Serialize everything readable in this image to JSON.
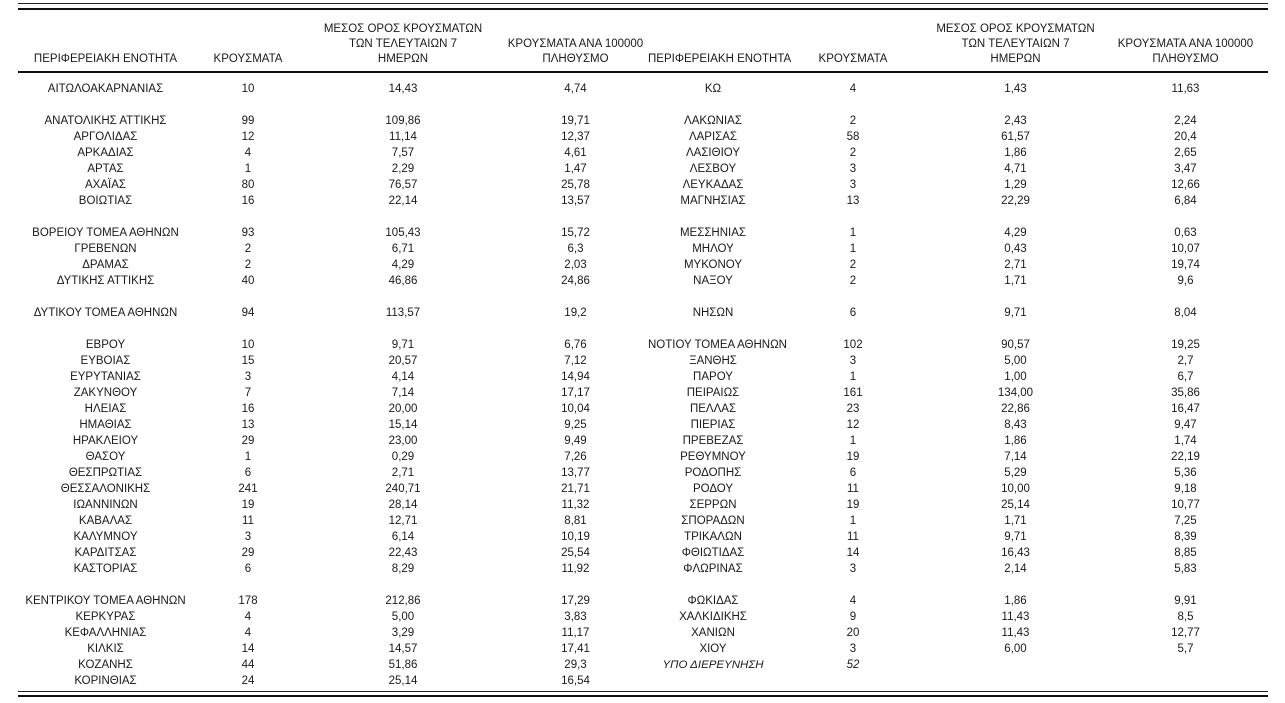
{
  "page": {
    "background": "#ffffff",
    "text_color": "#1a1a1a",
    "rule_color": "#111111"
  },
  "headers": {
    "region": "ΠΕΡΙΦΕΡΕΙΑΚΗ ΕΝΟΤΗΤΑ",
    "cases": "ΚΡΟΥΣΜΑΤΑ",
    "avg_lines": [
      "ΜΕΣΟΣ ΟΡΟΣ ΚΡΟΥΣΜΑΤΩΝ",
      "ΤΩΝ ΤΕΛΕΥΤΑΙΩΝ 7",
      "ΗΜΕΡΩΝ"
    ],
    "per_lines": [
      "ΚΡΟΥΣΜΑΤΑ ΑΝΑ 100000",
      "ΠΛΗΘΥΣΜΟ"
    ]
  },
  "tables": [
    {
      "side": "left",
      "rows": [
        {
          "region": "ΑΙΤΩΛΟΑΚΑΡΝΑΝΙΑΣ",
          "cases": "10",
          "avg7": "14,43",
          "per100k": "4,74"
        },
        null,
        {
          "region": "ΑΝΑΤΟΛΙΚΗΣ ΑΤΤΙΚΗΣ",
          "cases": "99",
          "avg7": "109,86",
          "per100k": "19,71"
        },
        {
          "region": "ΑΡΓΟΛΙΔΑΣ",
          "cases": "12",
          "avg7": "11,14",
          "per100k": "12,37"
        },
        {
          "region": "ΑΡΚΑΔΙΑΣ",
          "cases": "4",
          "avg7": "7,57",
          "per100k": "4,61"
        },
        {
          "region": "ΑΡΤΑΣ",
          "cases": "1",
          "avg7": "2,29",
          "per100k": "1,47"
        },
        {
          "region": "ΑΧΑΪΑΣ",
          "cases": "80",
          "avg7": "76,57",
          "per100k": "25,78"
        },
        {
          "region": "ΒΟΙΩΤΙΑΣ",
          "cases": "16",
          "avg7": "22,14",
          "per100k": "13,57"
        },
        null,
        {
          "region": "ΒΟΡΕΙΟΥ ΤΟΜΕΑ ΑΘΗΝΩΝ",
          "cases": "93",
          "avg7": "105,43",
          "per100k": "15,72"
        },
        {
          "region": "ΓΡΕΒΕΝΩΝ",
          "cases": "2",
          "avg7": "6,71",
          "per100k": "6,3"
        },
        {
          "region": "ΔΡΑΜΑΣ",
          "cases": "2",
          "avg7": "4,29",
          "per100k": "2,03"
        },
        {
          "region": "ΔΥΤΙΚΗΣ ΑΤΤΙΚΗΣ",
          "cases": "40",
          "avg7": "46,86",
          "per100k": "24,86"
        },
        null,
        {
          "region": "ΔΥΤΙΚΟΥ ΤΟΜΕΑ ΑΘΗΝΩΝ",
          "cases": "94",
          "avg7": "113,57",
          "per100k": "19,2"
        },
        null,
        {
          "region": "ΕΒΡΟΥ",
          "cases": "10",
          "avg7": "9,71",
          "per100k": "6,76"
        },
        {
          "region": "ΕΥΒΟΙΑΣ",
          "cases": "15",
          "avg7": "20,57",
          "per100k": "7,12"
        },
        {
          "region": "ΕΥΡΥΤΑΝΙΑΣ",
          "cases": "3",
          "avg7": "4,14",
          "per100k": "14,94"
        },
        {
          "region": "ΖΑΚΥΝΘΟΥ",
          "cases": "7",
          "avg7": "7,14",
          "per100k": "17,17"
        },
        {
          "region": "ΗΛΕΙΑΣ",
          "cases": "16",
          "avg7": "20,00",
          "per100k": "10,04"
        },
        {
          "region": "ΗΜΑΘΙΑΣ",
          "cases": "13",
          "avg7": "15,14",
          "per100k": "9,25"
        },
        {
          "region": "ΗΡΑΚΛΕΙΟΥ",
          "cases": "29",
          "avg7": "23,00",
          "per100k": "9,49"
        },
        {
          "region": "ΘΑΣΟΥ",
          "cases": "1",
          "avg7": "0,29",
          "per100k": "7,26"
        },
        {
          "region": "ΘΕΣΠΡΩΤΙΑΣ",
          "cases": "6",
          "avg7": "2,71",
          "per100k": "13,77"
        },
        {
          "region": "ΘΕΣΣΑΛΟΝΙΚΗΣ",
          "cases": "241",
          "avg7": "240,71",
          "per100k": "21,71"
        },
        {
          "region": "ΙΩΑΝΝΙΝΩΝ",
          "cases": "19",
          "avg7": "28,14",
          "per100k": "11,32"
        },
        {
          "region": "ΚΑΒΑΛΑΣ",
          "cases": "11",
          "avg7": "12,71",
          "per100k": "8,81"
        },
        {
          "region": "ΚΑΛΥΜΝΟΥ",
          "cases": "3",
          "avg7": "6,14",
          "per100k": "10,19"
        },
        {
          "region": "ΚΑΡΔΙΤΣΑΣ",
          "cases": "29",
          "avg7": "22,43",
          "per100k": "25,54"
        },
        {
          "region": "ΚΑΣΤΟΡΙΑΣ",
          "cases": "6",
          "avg7": "8,29",
          "per100k": "11,92"
        },
        null,
        {
          "region": "ΚΕΝΤΡΙΚΟΥ ΤΟΜΕΑ ΑΘΗΝΩΝ",
          "cases": "178",
          "avg7": "212,86",
          "per100k": "17,29"
        },
        {
          "region": "ΚΕΡΚΥΡΑΣ",
          "cases": "4",
          "avg7": "5,00",
          "per100k": "3,83"
        },
        {
          "region": "ΚΕΦΑΛΛΗΝΙΑΣ",
          "cases": "4",
          "avg7": "3,29",
          "per100k": "11,17"
        },
        {
          "region": "ΚΙΛΚΙΣ",
          "cases": "14",
          "avg7": "14,57",
          "per100k": "17,41"
        },
        {
          "region": "ΚΟΖΑΝΗΣ",
          "cases": "44",
          "avg7": "51,86",
          "per100k": "29,3"
        },
        {
          "region": "ΚΟΡΙΝΘΙΑΣ",
          "cases": "24",
          "avg7": "25,14",
          "per100k": "16,54"
        }
      ]
    },
    {
      "side": "right",
      "rows": [
        {
          "region": "ΚΩ",
          "cases": "4",
          "avg7": "1,43",
          "per100k": "11,63"
        },
        null,
        {
          "region": "ΛΑΚΩΝΙΑΣ",
          "cases": "2",
          "avg7": "2,43",
          "per100k": "2,24"
        },
        {
          "region": "ΛΑΡΙΣΑΣ",
          "cases": "58",
          "avg7": "61,57",
          "per100k": "20,4"
        },
        {
          "region": "ΛΑΣΙΘΙΟΥ",
          "cases": "2",
          "avg7": "1,86",
          "per100k": "2,65"
        },
        {
          "region": "ΛΕΣΒΟΥ",
          "cases": "3",
          "avg7": "4,71",
          "per100k": "3,47"
        },
        {
          "region": "ΛΕΥΚΑΔΑΣ",
          "cases": "3",
          "avg7": "1,29",
          "per100k": "12,66"
        },
        {
          "region": "ΜΑΓΝΗΣΙΑΣ",
          "cases": "13",
          "avg7": "22,29",
          "per100k": "6,84"
        },
        null,
        {
          "region": "ΜΕΣΣΗΝΙΑΣ",
          "cases": "1",
          "avg7": "4,29",
          "per100k": "0,63"
        },
        {
          "region": "ΜΗΛΟΥ",
          "cases": "1",
          "avg7": "0,43",
          "per100k": "10,07"
        },
        {
          "region": "ΜΥΚΟΝΟΥ",
          "cases": "2",
          "avg7": "2,71",
          "per100k": "19,74"
        },
        {
          "region": "ΝΑΞΟΥ",
          "cases": "2",
          "avg7": "1,71",
          "per100k": "9,6"
        },
        null,
        {
          "region": "ΝΗΣΩΝ",
          "cases": "6",
          "avg7": "9,71",
          "per100k": "8,04"
        },
        null,
        {
          "region": "ΝΟΤΙΟΥ ΤΟΜΕΑ ΑΘΗΝΩΝ",
          "cases": "102",
          "avg7": "90,57",
          "per100k": "19,25"
        },
        {
          "region": "ΞΑΝΘΗΣ",
          "cases": "3",
          "avg7": "5,00",
          "per100k": "2,7"
        },
        {
          "region": "ΠΑΡΟΥ",
          "cases": "1",
          "avg7": "1,00",
          "per100k": "6,7"
        },
        {
          "region": "ΠΕΙΡΑΙΩΣ",
          "cases": "161",
          "avg7": "134,00",
          "per100k": "35,86"
        },
        {
          "region": "ΠΕΛΛΑΣ",
          "cases": "23",
          "avg7": "22,86",
          "per100k": "16,47"
        },
        {
          "region": "ΠΙΕΡΙΑΣ",
          "cases": "12",
          "avg7": "8,43",
          "per100k": "9,47"
        },
        {
          "region": "ΠΡΕΒΕΖΑΣ",
          "cases": "1",
          "avg7": "1,86",
          "per100k": "1,74"
        },
        {
          "region": "ΡΕΘΥΜΝΟΥ",
          "cases": "19",
          "avg7": "7,14",
          "per100k": "22,19"
        },
        {
          "region": "ΡΟΔΟΠΗΣ",
          "cases": "6",
          "avg7": "5,29",
          "per100k": "5,36"
        },
        {
          "region": "ΡΟΔΟΥ",
          "cases": "11",
          "avg7": "10,00",
          "per100k": "9,18"
        },
        {
          "region": "ΣΕΡΡΩΝ",
          "cases": "19",
          "avg7": "25,14",
          "per100k": "10,77"
        },
        {
          "region": "ΣΠΟΡΑΔΩΝ",
          "cases": "1",
          "avg7": "1,71",
          "per100k": "7,25"
        },
        {
          "region": "ΤΡΙΚΑΛΩΝ",
          "cases": "11",
          "avg7": "9,71",
          "per100k": "8,39"
        },
        {
          "region": "ΦΘΙΩΤΙΔΑΣ",
          "cases": "14",
          "avg7": "16,43",
          "per100k": "8,85"
        },
        {
          "region": "ΦΛΩΡΙΝΑΣ",
          "cases": "3",
          "avg7": "2,14",
          "per100k": "5,83"
        },
        null,
        {
          "region": "ΦΩΚΙΔΑΣ",
          "cases": "4",
          "avg7": "1,86",
          "per100k": "9,91"
        },
        {
          "region": "ΧΑΛΚΙΔΙΚΗΣ",
          "cases": "9",
          "avg7": "11,43",
          "per100k": "8,5"
        },
        {
          "region": "ΧΑΝΙΩΝ",
          "cases": "20",
          "avg7": "11,43",
          "per100k": "12,77"
        },
        {
          "region": "ΧΙΟΥ",
          "cases": "3",
          "avg7": "6,00",
          "per100k": "5,7"
        },
        {
          "region": "ΥΠΟ ΔΙΕΡΕΥΝΗΣΗ",
          "cases": "52",
          "avg7": "",
          "per100k": "",
          "italic": true
        },
        null
      ]
    }
  ]
}
